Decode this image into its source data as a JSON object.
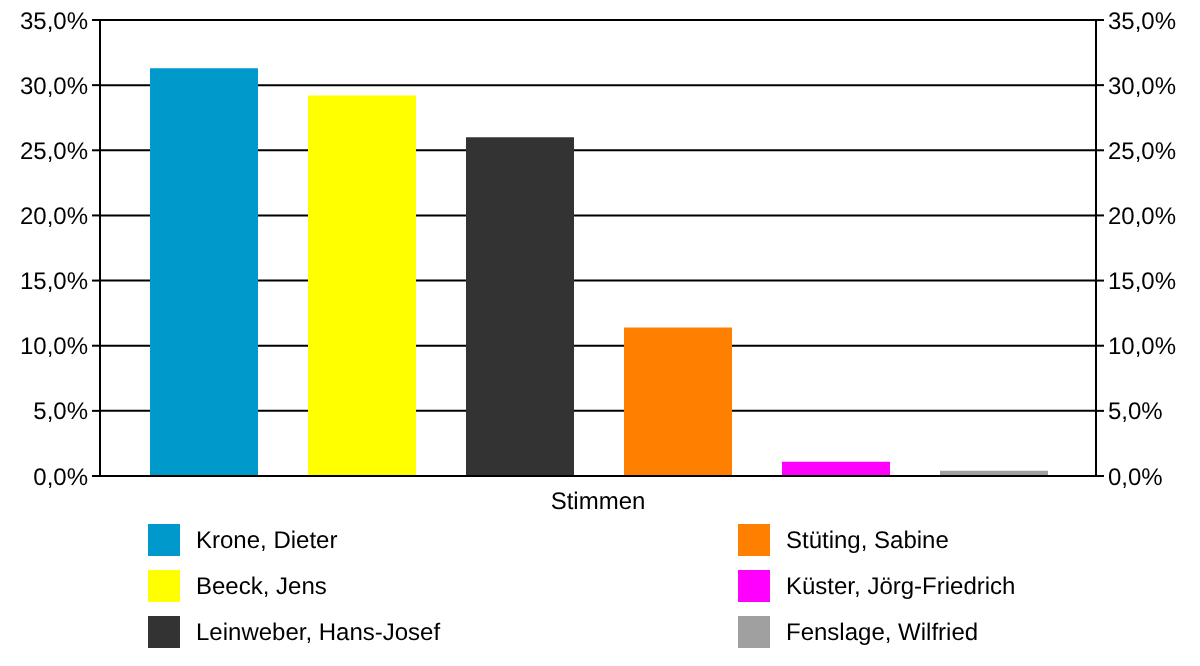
{
  "chart_data": {
    "type": "bar",
    "categories": [
      "Stimmen"
    ],
    "series": [
      {
        "name": "Krone, Dieter",
        "color": "#0099cc",
        "values": [
          31.3
        ]
      },
      {
        "name": "Beeck, Jens",
        "color": "#ffff00",
        "values": [
          29.2
        ]
      },
      {
        "name": "Leinweber, Hans-Josef",
        "color": "#333333",
        "values": [
          26.0
        ]
      },
      {
        "name": "Stüting, Sabine",
        "color": "#ff8000",
        "values": [
          11.4
        ]
      },
      {
        "name": "Küster, Jörg-Friedrich",
        "color": "#ff00ff",
        "values": [
          1.1
        ]
      },
      {
        "name": "Fenslage, Wilfried",
        "color": "#a0a0a0",
        "values": [
          0.4
        ]
      }
    ],
    "ylim": [
      0,
      35
    ],
    "yticks": [
      {
        "value": 0,
        "label": "0,0%"
      },
      {
        "value": 5,
        "label": "5,0%"
      },
      {
        "value": 10,
        "label": "10,0%"
      },
      {
        "value": 15,
        "label": "15,0%"
      },
      {
        "value": 20,
        "label": "20,0%"
      },
      {
        "value": 25,
        "label": "25,0%"
      },
      {
        "value": 30,
        "label": "30,0%"
      },
      {
        "value": 35,
        "label": "35,0%"
      }
    ],
    "grid": "y",
    "legend": "bottom"
  }
}
